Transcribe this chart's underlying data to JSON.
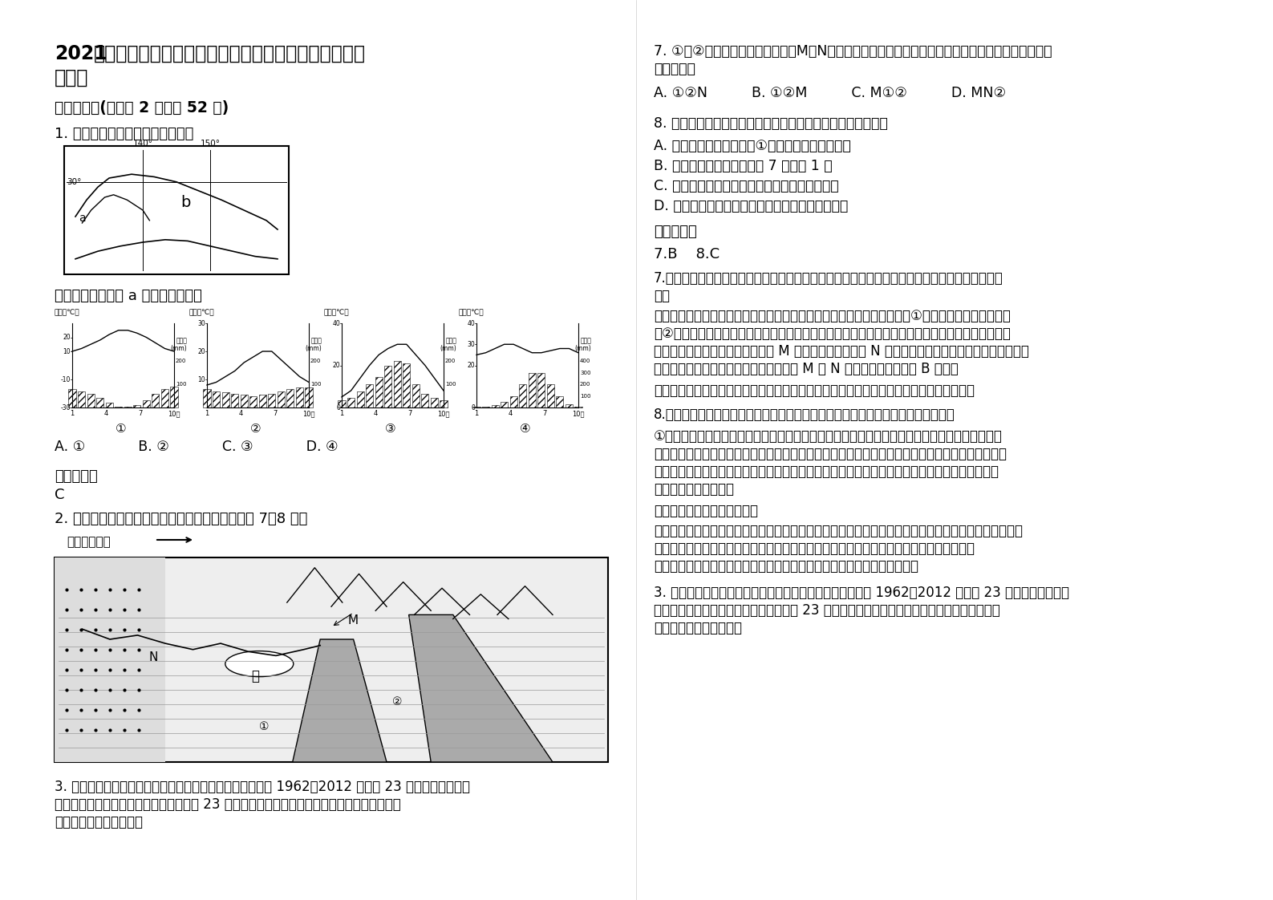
{
  "title_bold": "2021",
  "title_rest": "年湖北省荆州市洪湖实验中学高三地理下学期期末试题",
  "title2": "含解析",
  "section1": "一、选择题(每小题 2 分，共 52 分)",
  "q1_text": "1. 下图为某国部分地区，读图回答",
  "q1_sub": "下图中能正确表示 a 地气候类型的是",
  "q1_options": "A. ①            B. ②            C. ③            D. ④",
  "q1_answer_label": "参考答案：",
  "q1_answer": "C",
  "q2_text": "2. 下图为某沿海地区地质地貌示意图。读图，完成 7～8 题。",
  "wind_label": "常年盛行风向",
  "q7_line1": "7. ①、②分别示意两种地质构造，M、N分别示意两种地形类型。按照其形成时间的先后，正确的判断",
  "q7_line2": "是（　　）",
  "q7_options": "A. ①②N          B. ①②M          C. M①②          D. MN②",
  "q8_text": "8. 图示区域水循环及其河流、湖泊的叙述，正确的是（　　）",
  "q8_A": "A. 图示区域水循环参与了①处地质构造的形成过程",
  "q8_B": "B. 图示区域水循环活跃程度 7 月大于 1 月",
  "q8_C": "C. 图中河流干流发生弯曲的根本原因是地形因素",
  "q8_D": "D. 图示区域水循环总量的减少与图中湖泊关系密切",
  "ans_label": "参考答案：",
  "q78_answer": "7.B    8.C",
  "q7_anal_t": "7.【命题立意】本题旨在考查地质构造图中地质构造类型和地貌类型的知识，考查学生读图判读能",
  "q7_anal_t2": "力。",
  "q7_anal1": "从图示可以得出，该地先形成沉积岩，然后受地壳水平运动的挤压，形成①地质构造，为褶皱，后又",
  "q7_anal2": "在②处，岩层发生断裂，形成断层，使右侧的岩块上升，在地表形成山地，之后地表的河流在流出山",
  "q7_anal3": "地时，泥沙沉积，在山麓地带形成 M 地貌，为冲积扇，而 N 处为河口三角洲，由于河流形成的时间和",
  "q7_anal4": "断层的形成的时间，无法判断先后，所以 M 和 N 无法判断先后。所以 B 正确。",
  "q7_warn": "【解题误区警示】正确区分三大类岩石，分清地质构造类型与地貌类型之间的区别与联系。",
  "q8_anal_t": "8.【命题立意】本题旨在考查地质构造图中水循环的知识，考查学生读图分析能力。",
  "q8_anal1": "①处地质构造的形成是内力作用的结果，与水循环无关；该地位于大陆西部且常年盛行风向为西南",
  "q8_anal2": "风，所以判断该地属于北半球的温带海洋气候，全年降水分布均匀，水循环量各月相差不大；湖泊的",
  "q8_anal3": "存在加大了蒸发，加大了枯水期的径流量，从而增大了地区水循环量；而图中湖泊为外流湖，参与",
  "q8_anal4": "了水体的海陆间循环。",
  "q8_ins_t": "【感悟园】水循环的地理意义",
  "q8_ins1": "水循环首先是维持着地球上各水体之间的动态平衡，使淡水资源不断得到更新；其次水循环促进了自然界",
  "q8_ins2": "的物质运动和能量交换，此对气候、地貌等都产生了深刻的影响；水是自然界最富动力作用",
  "q8_ins3": "的因子之一；水循环是传送带，它是地表物质迁移的强大动力和主要载体。",
  "q3_t1": "3. 花期物候研究对优化花境和健康生活有重要意义。下图为 1962～2012 年我国 23 种木本植物在不同",
  "q3_t2": "纬度的花期长度变化趋势示意图。细线是 23 种木本植物花期长度的连线。圆点表示变化的平均",
  "q3_t3": "值。据此完成下面小题。",
  "bg_color": "#ffffff"
}
